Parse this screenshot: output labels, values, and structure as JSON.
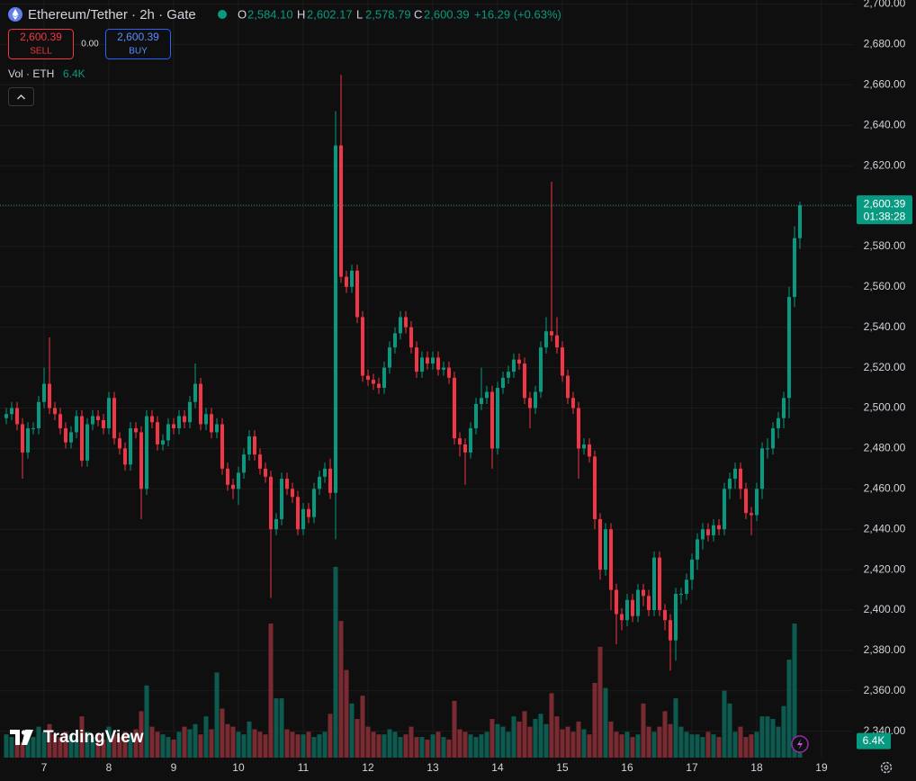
{
  "toolbar": {
    "symbol": "Ethereum/Tether · 2h · Gate",
    "ohlc": [
      {
        "key": "O",
        "value": "2,584.10"
      },
      {
        "key": "H",
        "value": "2,602.17"
      },
      {
        "key": "L",
        "value": "2,578.79"
      },
      {
        "key": "C",
        "value": "2,600.39"
      }
    ],
    "change": "+16.29 (+0.63%)",
    "sell_price": "2,600.39",
    "sell": "SELL",
    "spread": "0.00",
    "buy_price": "2,600.39",
    "buy": "BUY"
  },
  "branding": "TradingView",
  "chart_data": {
    "type": "candlestick",
    "up_color": "#089981",
    "down_color": "#f23645",
    "grid": true,
    "x": [
      -14,
      -12,
      -10,
      -8,
      -6,
      -4,
      -2,
      0,
      2,
      4,
      6,
      8,
      10,
      12,
      14,
      16,
      18,
      20,
      22,
      24,
      26,
      28,
      30,
      32,
      34,
      36,
      38,
      40,
      42,
      44,
      46,
      48,
      50,
      52,
      54,
      56,
      58,
      60,
      62,
      64,
      66,
      68,
      70,
      72,
      74,
      76,
      78,
      80,
      82,
      84,
      86,
      88,
      90,
      92,
      94,
      96,
      98,
      100,
      102,
      104,
      106,
      108,
      110,
      112,
      114,
      116,
      118,
      120,
      122,
      124,
      126,
      128,
      130,
      132,
      134,
      136,
      138,
      140,
      142,
      144,
      146,
      148,
      150,
      152,
      154,
      156,
      158,
      160,
      162,
      164,
      166,
      168,
      170,
      172,
      174,
      176,
      178,
      180,
      182,
      184,
      186,
      188,
      190,
      192,
      194,
      196,
      198,
      200,
      202,
      204,
      206,
      208,
      210,
      212,
      214,
      216,
      218,
      220,
      222,
      224,
      226,
      228,
      230,
      232,
      234,
      236,
      238,
      240,
      242,
      244,
      246,
      248,
      250,
      252,
      254,
      256,
      258,
      260,
      262,
      264,
      266,
      268,
      270,
      272,
      274,
      276,
      278,
      280
    ],
    "open": [
      2495,
      2497,
      2500,
      2492,
      2478,
      2490,
      2490,
      2503,
      2512,
      2500,
      2497,
      2490,
      2483,
      2488,
      2496,
      2474,
      2492,
      2496,
      2494,
      2490,
      2505,
      2485,
      2480,
      2472,
      2490,
      2488,
      2460,
      2496,
      2493,
      2482,
      2484,
      2492,
      2490,
      2496,
      2493,
      2503,
      2512,
      2492,
      2497,
      2488,
      2492,
      2470,
      2462,
      2460,
      2468,
      2477,
      2486,
      2477,
      2470,
      2466,
      2440,
      2445,
      2465,
      2460,
      2456,
      2440,
      2450,
      2446,
      2460,
      2466,
      2470,
      2458,
      2630,
      2565,
      2560,
      2568,
      2545,
      2516,
      2514,
      2512,
      2510,
      2520,
      2530,
      2537,
      2545,
      2540,
      2530,
      2518,
      2525,
      2522,
      2525,
      2519,
      2520,
      2515,
      2485,
      2482,
      2478,
      2490,
      2502,
      2505,
      2508,
      2480,
      2510,
      2515,
      2518,
      2524,
      2522,
      2505,
      2500,
      2508,
      2530,
      2538,
      2536,
      2530,
      2516,
      2505,
      2500,
      2480,
      2482,
      2476,
      2445,
      2420,
      2440,
      2410,
      2398,
      2395,
      2405,
      2397,
      2410,
      2407,
      2400,
      2426,
      2400,
      2395,
      2385,
      2408,
      2408,
      2415,
      2425,
      2435,
      2440,
      2437,
      2442,
      2440,
      2460,
      2465,
      2470,
      2460,
      2448,
      2447,
      2460,
      2480,
      2480,
      2490,
      2495,
      2505,
      2555,
      2584.1
    ],
    "high": [
      2500,
      2503,
      2503,
      2495,
      2493,
      2493,
      2506,
      2520,
      2535,
      2503,
      2500,
      2493,
      2491,
      2499,
      2499,
      2495,
      2499,
      2499,
      2497,
      2508,
      2508,
      2488,
      2483,
      2493,
      2493,
      2491,
      2499,
      2499,
      2496,
      2487,
      2495,
      2495,
      2499,
      2499,
      2506,
      2522,
      2515,
      2500,
      2500,
      2495,
      2495,
      2473,
      2465,
      2471,
      2480,
      2489,
      2489,
      2480,
      2473,
      2469,
      2448,
      2468,
      2468,
      2463,
      2459,
      2453,
      2453,
      2463,
      2469,
      2473,
      2475,
      2647,
      2665,
      2568,
      2571,
      2571,
      2548,
      2519,
      2517,
      2515,
      2523,
      2533,
      2540,
      2548,
      2548,
      2543,
      2533,
      2528,
      2528,
      2528,
      2528,
      2523,
      2523,
      2518,
      2488,
      2485,
      2493,
      2505,
      2520,
      2511,
      2511,
      2513,
      2518,
      2521,
      2527,
      2527,
      2525,
      2508,
      2511,
      2533,
      2545,
      2612,
      2545,
      2533,
      2519,
      2508,
      2503,
      2485,
      2485,
      2479,
      2448,
      2443,
      2443,
      2413,
      2401,
      2408,
      2408,
      2413,
      2413,
      2410,
      2429,
      2429,
      2403,
      2398,
      2411,
      2411,
      2418,
      2428,
      2438,
      2443,
      2443,
      2445,
      2445,
      2463,
      2468,
      2473,
      2473,
      2463,
      2451,
      2463,
      2483,
      2485,
      2493,
      2498,
      2508,
      2560,
      2590,
      2602.17
    ],
    "low": [
      2492,
      2494,
      2489,
      2465,
      2475,
      2487,
      2487,
      2500,
      2497,
      2494,
      2487,
      2480,
      2480,
      2485,
      2471,
      2471,
      2489,
      2491,
      2487,
      2487,
      2482,
      2477,
      2469,
      2469,
      2485,
      2445,
      2457,
      2490,
      2479,
      2479,
      2481,
      2487,
      2487,
      2490,
      2490,
      2500,
      2489,
      2489,
      2485,
      2485,
      2467,
      2459,
      2455,
      2452,
      2465,
      2474,
      2474,
      2467,
      2463,
      2406,
      2437,
      2442,
      2457,
      2453,
      2437,
      2437,
      2443,
      2443,
      2457,
      2463,
      2455,
      2435,
      2562,
      2557,
      2557,
      2542,
      2513,
      2511,
      2509,
      2507,
      2507,
      2517,
      2527,
      2534,
      2537,
      2527,
      2515,
      2515,
      2519,
      2519,
      2516,
      2516,
      2512,
      2482,
      2476,
      2462,
      2475,
      2487,
      2499,
      2502,
      2470,
      2477,
      2507,
      2512,
      2515,
      2519,
      2502,
      2490,
      2497,
      2505,
      2527,
      2533,
      2527,
      2513,
      2502,
      2497,
      2465,
      2477,
      2473,
      2440,
      2415,
      2417,
      2400,
      2383,
      2390,
      2392,
      2394,
      2394,
      2402,
      2397,
      2397,
      2397,
      2390,
      2370,
      2375,
      2403,
      2405,
      2410,
      2420,
      2430,
      2434,
      2434,
      2437,
      2437,
      2455,
      2460,
      2455,
      2445,
      2437,
      2444,
      2455,
      2475,
      2477,
      2485,
      2490,
      2495,
      2550,
      2578.79
    ],
    "close": [
      2497,
      2500,
      2492,
      2478,
      2490,
      2490,
      2503,
      2512,
      2500,
      2497,
      2490,
      2483,
      2488,
      2496,
      2474,
      2492,
      2496,
      2494,
      2490,
      2505,
      2485,
      2480,
      2472,
      2490,
      2488,
      2460,
      2496,
      2493,
      2482,
      2484,
      2492,
      2490,
      2496,
      2493,
      2503,
      2512,
      2492,
      2497,
      2488,
      2492,
      2470,
      2462,
      2460,
      2468,
      2477,
      2486,
      2477,
      2470,
      2466,
      2440,
      2445,
      2465,
      2460,
      2456,
      2440,
      2450,
      2446,
      2460,
      2466,
      2470,
      2458,
      2630,
      2565,
      2560,
      2568,
      2545,
      2516,
      2514,
      2512,
      2510,
      2520,
      2530,
      2537,
      2545,
      2540,
      2530,
      2518,
      2525,
      2522,
      2525,
      2519,
      2520,
      2515,
      2485,
      2482,
      2478,
      2490,
      2502,
      2505,
      2508,
      2480,
      2510,
      2515,
      2518,
      2524,
      2522,
      2505,
      2500,
      2508,
      2530,
      2538,
      2536,
      2530,
      2516,
      2505,
      2500,
      2480,
      2482,
      2476,
      2445,
      2420,
      2440,
      2410,
      2398,
      2395,
      2405,
      2397,
      2410,
      2407,
      2400,
      2426,
      2400,
      2395,
      2385,
      2408,
      2408,
      2415,
      2425,
      2435,
      2440,
      2437,
      2442,
      2440,
      2460,
      2465,
      2470,
      2460,
      2448,
      2447,
      2460,
      2480,
      2480,
      2490,
      2495,
      2505,
      2555,
      2584.1,
      2600.39
    ],
    "volume": {
      "name": "Vol · ETH",
      "up_color": "#0d5a50",
      "down_color": "#7a2a31",
      "last_label": "6.4K",
      "values": [
        9000,
        8000,
        7000,
        6000,
        11000,
        8000,
        12000,
        10000,
        13000,
        9000,
        8000,
        10000,
        9000,
        7000,
        16000,
        10000,
        8000,
        9000,
        7000,
        12000,
        9000,
        8000,
        10000,
        9000,
        11000,
        18000,
        28000,
        12000,
        10000,
        9000,
        8000,
        7000,
        10000,
        12000,
        11000,
        13000,
        9000,
        16000,
        11000,
        33000,
        19000,
        13000,
        12000,
        10000,
        9000,
        14000,
        11000,
        10000,
        9000,
        52000,
        23000,
        23000,
        11000,
        10000,
        9000,
        9000,
        10000,
        8000,
        9000,
        10000,
        17000,
        74000,
        53000,
        34000,
        21000,
        15000,
        24000,
        12000,
        10000,
        9000,
        9000,
        11000,
        10000,
        8000,
        9000,
        12000,
        8000,
        8000,
        7000,
        9000,
        10000,
        8000,
        7000,
        22000,
        11000,
        10000,
        9000,
        8000,
        9000,
        10000,
        15000,
        13000,
        12000,
        10000,
        16000,
        14000,
        18000,
        12000,
        15000,
        17000,
        13000,
        25000,
        16000,
        11000,
        12000,
        10000,
        14000,
        11000,
        9000,
        29000,
        43000,
        27000,
        14000,
        10000,
        9000,
        10000,
        8000,
        9000,
        21000,
        12000,
        10000,
        12000,
        18000,
        13000,
        23000,
        12000,
        10000,
        9000,
        9000,
        8000,
        10000,
        9000,
        8000,
        26000,
        21000,
        10000,
        12000,
        8000,
        9000,
        10000,
        16000,
        16000,
        15000,
        12000,
        20000,
        38000,
        52000,
        6400
      ]
    },
    "last_price_label": "2,600.39",
    "countdown": "01:38:28",
    "xlim": [
      -16.33,
      299.67
    ],
    "xticks": [
      {
        "value": 0,
        "label": "7"
      },
      {
        "value": 24,
        "label": "8"
      },
      {
        "value": 48,
        "label": "9"
      },
      {
        "value": 72,
        "label": "10"
      },
      {
        "value": 96,
        "label": "11"
      },
      {
        "value": 120,
        "label": "12"
      },
      {
        "value": 144,
        "label": "13"
      },
      {
        "value": 168,
        "label": "14"
      },
      {
        "value": 192,
        "label": "15"
      },
      {
        "value": 216,
        "label": "16"
      },
      {
        "value": 240,
        "label": "17"
      },
      {
        "value": 264,
        "label": "18"
      },
      {
        "value": 288,
        "label": "19"
      }
    ],
    "ylim": [
      2326.95,
      2702.0
    ],
    "yticks": [
      {
        "value": 2340,
        "label": "2,340.00"
      },
      {
        "value": 2360,
        "label": "2,360.00"
      },
      {
        "value": 2380,
        "label": "2,380.00"
      },
      {
        "value": 2400,
        "label": "2,400.00"
      },
      {
        "value": 2420,
        "label": "2,420.00"
      },
      {
        "value": 2440,
        "label": "2,440.00"
      },
      {
        "value": 2460,
        "label": "2,460.00"
      },
      {
        "value": 2480,
        "label": "2,480.00"
      },
      {
        "value": 2500,
        "label": "2,500.00"
      },
      {
        "value": 2520,
        "label": "2,520.00"
      },
      {
        "value": 2540,
        "label": "2,540.00"
      },
      {
        "value": 2560,
        "label": "2,560.00"
      },
      {
        "value": 2580,
        "label": "2,580.00"
      },
      {
        "value": 2600,
        "label": "2,600.00"
      },
      {
        "value": 2620,
        "label": "2,620.00"
      },
      {
        "value": 2640,
        "label": "2,640.00"
      },
      {
        "value": 2660,
        "label": "2,660.00"
      },
      {
        "value": 2680,
        "label": "2,680.00"
      },
      {
        "value": 2700,
        "label": "2,700.00"
      }
    ]
  }
}
